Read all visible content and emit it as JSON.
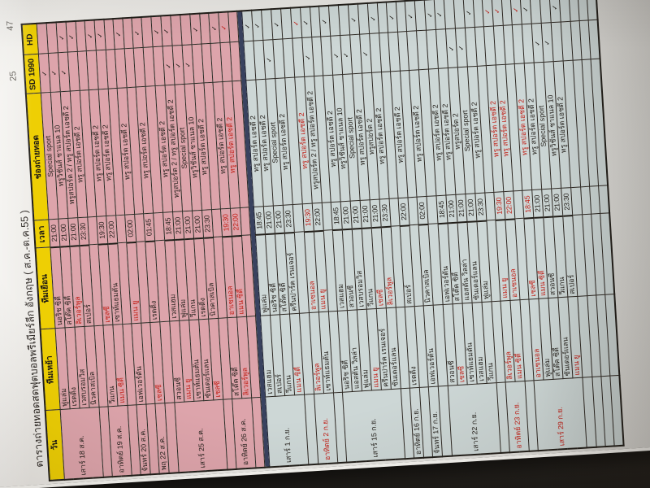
{
  "page": {
    "title": "ตารางถ่ายทอดสดฟุตบอลพรีเมียร์ลีก อังกฤษ ( ส.ค.-ต.ค.55 )",
    "page_number_left": "25",
    "page_number_right": "47"
  },
  "colors": {
    "august_row_bg": "#dda4ab",
    "september_row_bg": "#cdd7d6",
    "header_bg": "#eecf04",
    "section_divider": "#39425f",
    "highlight_red": "#c22018"
  },
  "table": {
    "headers": [
      "วัน",
      "ทีมเหย้า",
      "ทีมเยือน",
      "เวลา",
      "ช่องถ่ายทอด",
      "SD 1990",
      "HD"
    ],
    "checkmark": "✓",
    "trailing_empty_rows": 4,
    "sections": [
      {
        "name": "august",
        "style": "s-aug",
        "groups": [
          {
            "day": "เสาร์ 18 ส.ค.",
            "day_red": false,
            "matches": [
              {
                "home": "ฟูแล่ม",
                "home_red": false,
                "away": "นอริช ซิตี้",
                "away_red": false,
                "time": "21:00",
                "time_red": false,
                "channel": "Special sport",
                "channel_red": false,
                "sd": true,
                "hd": false,
                "row_red": false
              },
              {
                "home": "เรดดิ้ง",
                "home_red": false,
                "away": "สโต๊ค ซิตี้",
                "away_red": false,
                "time": "21:00",
                "time_red": false,
                "channel": "ทรูวิชั่นส์ ชาแนล 10",
                "channel_red": false,
                "sd": true,
                "hd": false,
                "row_red": false
              },
              {
                "home": "เวสบรอมวิส",
                "home_red": false,
                "away": "ลิเวอร์พูล",
                "away_red": true,
                "time": "21:00",
                "time_red": false,
                "channel": "ทรูสปอร์ต 2 / ทรู สปอร์ต เอชดี 2",
                "channel_red": false,
                "sd": true,
                "hd": true,
                "row_red": false
              },
              {
                "home": "นิวคาสเบิล",
                "home_red": false,
                "away": "สเปอร์",
                "away_red": false,
                "time": "23:30",
                "time_red": false,
                "channel": "ทรู สปอร์ต เอชดี 2",
                "channel_red": false,
                "sd": false,
                "hd": true,
                "row_red": false
              }
            ]
          },
          {
            "day": "อาทิตย์ 19 ส.ค.",
            "day_red": false,
            "matches": [
              {
                "home": "วีแกน",
                "home_red": false,
                "away": "เชลซี",
                "away_red": true,
                "time": "19:30",
                "time_red": false,
                "channel": "ทรู สปอร์ต เอชดี 2",
                "channel_red": false,
                "sd": false,
                "hd": true,
                "row_red": false
              },
              {
                "home": "แมน ซิตี้",
                "home_red": true,
                "away": "เซาท์แธมตัน",
                "away_red": false,
                "time": "22:00",
                "time_red": false,
                "channel": "ทรู สปอร์ต เอชดี 2",
                "channel_red": false,
                "sd": false,
                "hd": true,
                "row_red": false
              }
            ]
          },
          {
            "day": "จันทร์ 20 ส.ค.",
            "day_red": false,
            "matches": [
              {
                "home": "เอฟเวอร์ตัน",
                "home_red": false,
                "away": "แมน ยู",
                "away_red": true,
                "time": "02:00",
                "time_red": false,
                "channel": "ทรู สปอร์ต เอชดี 2",
                "channel_red": false,
                "sd": false,
                "hd": true,
                "row_red": false
              }
            ]
          },
          {
            "day": "พฤ 22 ส.ค.",
            "day_red": false,
            "matches": [
              {
                "home": "เชลซี",
                "home_red": true,
                "away": "เรดดิ้ง",
                "away_red": false,
                "time": "01:45",
                "time_red": false,
                "channel": "ทรู สปอร์ต เอชดี 2",
                "channel_red": false,
                "sd": false,
                "hd": true,
                "row_red": false
              }
            ]
          },
          {
            "day": "เสาร์ 25 ส.ค.",
            "day_red": false,
            "matches": [
              {
                "home": "สวอนซี",
                "home_red": false,
                "away": "เวสแฮม",
                "away_red": false,
                "time": "18:45",
                "time_red": false,
                "channel": "ทรู สปอร์ต เอชดี 2",
                "channel_red": false,
                "sd": false,
                "hd": true,
                "row_red": false
              },
              {
                "home": "แมน ยู",
                "home_red": true,
                "away": "ฟูแล่ม",
                "away_red": false,
                "time": "21:00",
                "time_red": false,
                "channel": "ทรูสปอร์ต 2 / ทรู สปอร์ต เอชดี 2",
                "channel_red": false,
                "sd": true,
                "hd": true,
                "row_red": false
              },
              {
                "home": "เซาท์แธมตัน",
                "home_red": false,
                "away": "วีแกน",
                "away_red": false,
                "time": "21:00",
                "time_red": false,
                "channel": "Special sport",
                "channel_red": false,
                "sd": true,
                "hd": false,
                "row_red": false
              },
              {
                "home": "ซันเดอร์แลน",
                "home_red": false,
                "away": "เรดดิ้ง",
                "away_red": false,
                "time": "21:00",
                "time_red": false,
                "channel": "ทรูวิชั่นส์ ชาแนล 10",
                "channel_red": false,
                "sd": true,
                "hd": false,
                "row_red": false
              },
              {
                "home": "เชลซี",
                "home_red": true,
                "away": "นิวคาสเบิล",
                "away_red": false,
                "time": "23:30",
                "time_red": false,
                "channel": "ทรู สปอร์ต เอชดี 2",
                "channel_red": false,
                "sd": false,
                "hd": true,
                "row_red": false
              }
            ]
          },
          {
            "day": "อาทิตย์ 26 ส.ค.",
            "day_red": false,
            "matches": [
              {
                "home": "สโต๊ค ซิตี้",
                "home_red": false,
                "away": "อาเซนอล",
                "away_red": true,
                "time": "19:30",
                "time_red": true,
                "channel": "ทรู สปอร์ต เอชดี 2",
                "channel_red": false,
                "sd": false,
                "hd": true,
                "row_red": false
              },
              {
                "home": "ลิเวอร์พูล",
                "home_red": true,
                "away": "แมน ซิตี้",
                "away_red": true,
                "time": "22:00",
                "time_red": true,
                "channel": "ทรู สปอร์ต เอชดี 2",
                "channel_red": true,
                "sd": false,
                "hd": true,
                "row_red": true
              }
            ]
          }
        ]
      },
      {
        "name": "september",
        "style": "s-sep",
        "groups": [
          {
            "day": "เสาร์ 1 ก.ย.",
            "day_red": false,
            "matches": [
              {
                "home": "เวสแฮม",
                "home_red": false,
                "away": "ฟูแล่ม",
                "away_red": false,
                "time": "18:45",
                "time_red": false,
                "channel": "ทรู สปอร์ต เอชดี 2",
                "channel_red": false,
                "sd": false,
                "hd": true,
                "row_red": false
              },
              {
                "home": "สเปอร์",
                "home_red": false,
                "away": "นอริช ซิตี้",
                "away_red": false,
                "time": "21:00",
                "time_red": false,
                "channel": "ทรู สปอร์ต เอชดี 2",
                "channel_red": false,
                "sd": false,
                "hd": true,
                "row_red": false
              },
              {
                "home": "วีแกน",
                "home_red": false,
                "away": "สโต๊ค ซิตี้",
                "away_red": false,
                "time": "21:00",
                "time_red": false,
                "channel": "Special sport",
                "channel_red": false,
                "sd": true,
                "hd": false,
                "row_red": false
              },
              {
                "home": "แมน ซิตี้",
                "home_red": true,
                "away": "ครีนปาร์ค เรนเจอร์",
                "away_red": false,
                "time": "23:30",
                "time_red": false,
                "channel": "ทรู สปอร์ต เอชดี 2",
                "channel_red": false,
                "sd": false,
                "hd": true,
                "row_red": false
              }
            ]
          },
          {
            "day": "อาทิตย์ 2 ก.ย.",
            "day_red": true,
            "matches": [
              {
                "home": "ลิเวอร์พูล",
                "home_red": true,
                "away": "อาเซนอล",
                "away_red": true,
                "time": "19:30",
                "time_red": true,
                "channel": "ทรู สปอร์ต เอชดี 2",
                "channel_red": true,
                "sd": false,
                "hd": true,
                "row_red": true
              },
              {
                "home": "เซาท์แธมตัน",
                "home_red": false,
                "away": "แมน ยู",
                "away_red": true,
                "time": "22:00",
                "time_red": false,
                "channel": "ทรูสปอร์ต 2 / ทรู สปอร์ต เอชดี 2",
                "channel_red": false,
                "sd": true,
                "hd": true,
                "row_red": false
              }
            ]
          },
          {
            "day": "เสาร์ 15 ก.ย.",
            "day_red": false,
            "matches": [
              {
                "home": "นอริช ซิตี้",
                "home_red": false,
                "away": "เวสแฮม",
                "away_red": false,
                "time": "18:45",
                "time_red": false,
                "channel": "ทรู สปอร์ต เอชดี 2",
                "channel_red": false,
                "sd": false,
                "hd": true,
                "row_red": false
              },
              {
                "home": "แอสตัน วิลล่า",
                "home_red": false,
                "away": "สวอนซี",
                "away_red": false,
                "time": "21:00",
                "time_red": false,
                "channel": "ทรูวิชั่นส์ ชาแนล 10",
                "channel_red": false,
                "sd": true,
                "hd": false,
                "row_red": false
              },
              {
                "home": "ฟูแล่ม",
                "home_red": false,
                "away": "เวสบรอมวิส",
                "away_red": false,
                "time": "21:00",
                "time_red": false,
                "channel": "Special sport",
                "channel_red": false,
                "sd": true,
                "hd": false,
                "row_red": false
              },
              {
                "home": "แมน ยู",
                "home_red": true,
                "away": "วีแกน",
                "away_red": false,
                "time": "21:00",
                "time_red": false,
                "channel": "ทรู สปอร์ต เอชดี 2",
                "channel_red": false,
                "sd": false,
                "hd": true,
                "row_red": false
              },
              {
                "home": "ครีนปาร์ค เรนเจอร์",
                "home_red": false,
                "away": "เชลซี",
                "away_red": true,
                "time": "21:00",
                "time_red": false,
                "channel": "ทรูสปอร์ต 2",
                "channel_red": false,
                "sd": true,
                "hd": false,
                "row_red": false
              },
              {
                "home": "ซันเดอร์แลน",
                "home_red": false,
                "away": "ลิเวอร์พูล",
                "away_red": true,
                "time": "23:30",
                "time_red": false,
                "channel": "ทรู สปอร์ต เอชดี 2",
                "channel_red": false,
                "sd": false,
                "hd": true,
                "row_red": false
              }
            ]
          },
          {
            "day": "อาทิตย์ 16 ก.ย.",
            "day_red": false,
            "matches": [
              {
                "home": "เรดดิ้ง",
                "home_red": false,
                "away": "สเปอร์",
                "away_red": false,
                "time": "22:00",
                "time_red": false,
                "channel": "ทรู สปอร์ต เอชดี 2",
                "channel_red": false,
                "sd": false,
                "hd": true,
                "row_red": false
              }
            ]
          },
          {
            "day": "จันทร์ 17 ก.ย.",
            "day_red": false,
            "matches": [
              {
                "home": "เอฟเวอร์ตัน",
                "home_red": false,
                "away": "นิวคาสเบิล",
                "away_red": false,
                "time": "02:00",
                "time_red": false,
                "channel": "ทรู สปอร์ต เอชดี 2",
                "channel_red": false,
                "sd": false,
                "hd": true,
                "row_red": false
              }
            ]
          },
          {
            "day": "เสาร์ 22 ก.ย.",
            "day_red": false,
            "matches": [
              {
                "home": "สวอนซี",
                "home_red": false,
                "away": "เอฟเวอร์ตัน",
                "away_red": false,
                "time": "18:45",
                "time_red": false,
                "channel": "ทรู สปอร์ต เอชดี 2",
                "channel_red": false,
                "sd": false,
                "hd": true,
                "row_red": false
              },
              {
                "home": "เชลซี",
                "home_red": true,
                "away": "สโต๊ค ซิตี้",
                "away_red": false,
                "time": "21:00",
                "time_red": false,
                "channel": "ทรู สปอร์ต เอชดี 2",
                "channel_red": false,
                "sd": false,
                "hd": true,
                "row_red": false
              },
              {
                "home": "เซาท์แธมตัน",
                "home_red": false,
                "away": "แอสตัน วิลล่า",
                "away_red": false,
                "time": "21:00",
                "time_red": false,
                "channel": "ทรูสปอร์ต 2",
                "channel_red": false,
                "sd": true,
                "hd": false,
                "row_red": false
              },
              {
                "home": "เวสแฮม",
                "home_red": false,
                "away": "ซันเดอร์แลน",
                "away_red": false,
                "time": "21:00",
                "time_red": false,
                "channel": "Special sport",
                "channel_red": false,
                "sd": true,
                "hd": false,
                "row_red": false
              },
              {
                "home": "วีแกน",
                "home_red": false,
                "away": "ฟูแล่ม",
                "away_red": false,
                "time": "23:30",
                "time_red": false,
                "channel": "ทรู สปอร์ต เอชดี 2",
                "channel_red": false,
                "sd": false,
                "hd": true,
                "row_red": false
              }
            ]
          },
          {
            "day": "อาทิตย์ 23 ก.ย.",
            "day_red": true,
            "matches": [
              {
                "home": "ลิเวอร์พูล",
                "home_red": true,
                "away": "แมน ยู",
                "away_red": true,
                "time": "19:30",
                "time_red": true,
                "channel": "ทรู สปอร์ต เอชดี 2",
                "channel_red": true,
                "sd": false,
                "hd": true,
                "row_red": true
              },
              {
                "home": "แมน ซิตี้",
                "home_red": true,
                "away": "อาเซนอล",
                "away_red": true,
                "time": "22:00",
                "time_red": true,
                "channel": "ทรู สปอร์ต เอชดี 2",
                "channel_red": true,
                "sd": false,
                "hd": true,
                "row_red": true
              }
            ]
          },
          {
            "day": "เสาร์ 29 ก.ย.",
            "day_red": true,
            "matches": [
              {
                "home": "อาเซนอล",
                "home_red": true,
                "away": "เชลซี",
                "away_red": true,
                "time": "18:45",
                "time_red": true,
                "channel": "ทรู สปอร์ต เอชดี 2",
                "channel_red": true,
                "sd": false,
                "hd": true,
                "row_red": true
              },
              {
                "home": "ฟูแล่ม",
                "home_red": false,
                "away": "แมน ซิตี้",
                "away_red": true,
                "time": "21:00",
                "time_red": false,
                "channel": "ทรู สปอร์ต เอชดี 2",
                "channel_red": false,
                "sd": false,
                "hd": true,
                "row_red": false
              },
              {
                "home": "สโต๊ค ซิตี้",
                "home_red": false,
                "away": "สวอนซี",
                "away_red": false,
                "time": "21:00",
                "time_red": false,
                "channel": "Special sport",
                "channel_red": false,
                "sd": true,
                "hd": false,
                "row_red": false
              },
              {
                "home": "ซันเดอร์แลน",
                "home_red": false,
                "away": "วีแกน",
                "away_red": false,
                "time": "21:00",
                "time_red": false,
                "channel": "ทรูวิชั่นส์ ชาแนล 10",
                "channel_red": false,
                "sd": true,
                "hd": false,
                "row_red": false
              },
              {
                "home": "แมน ยู",
                "home_red": true,
                "away": "สเปอร์",
                "away_red": false,
                "time": "23:30",
                "time_red": false,
                "channel": "ทรู สปอร์ต เอชดี 2",
                "channel_red": false,
                "sd": false,
                "hd": true,
                "row_red": false
              }
            ]
          }
        ]
      }
    ]
  }
}
